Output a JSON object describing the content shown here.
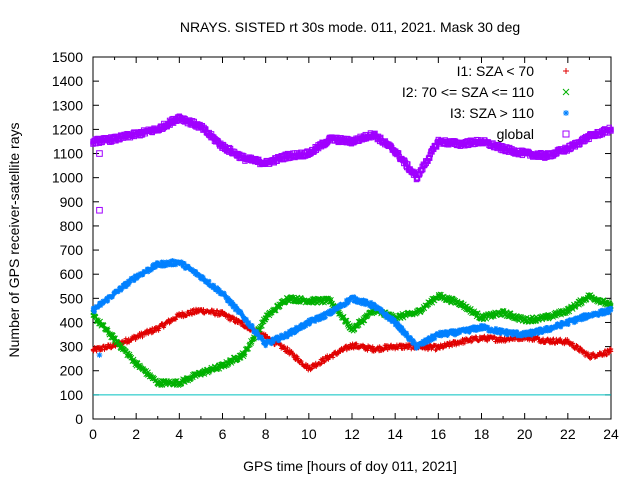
{
  "chart_data": {
    "type": "scatter",
    "title": "NRAYS. SISTED rt 30s mode. 011, 2021. Mask 30 deg",
    "xlabel": "GPS time [hours of doy 011, 2021]",
    "ylabel": "Number of GPS receiver-satellite rays",
    "xlim": [
      0,
      24
    ],
    "ylim": [
      0,
      1500
    ],
    "xticks": [
      "0",
      "2",
      "4",
      "6",
      "8",
      "10",
      "12",
      "14",
      "16",
      "18",
      "20",
      "22",
      "24"
    ],
    "yticks": [
      "0",
      "100",
      "200",
      "300",
      "400",
      "500",
      "600",
      "700",
      "800",
      "900",
      "1000",
      "1100",
      "1200",
      "1300",
      "1400",
      "1500"
    ],
    "reference_line": {
      "y": 100,
      "color": "#00c0c0"
    },
    "series": [
      {
        "name": "I1: SZA < 70",
        "marker": "+",
        "color": "#e00000",
        "x": [
          0,
          1,
          2,
          3,
          4,
          5,
          6,
          7,
          8,
          9,
          10,
          11,
          12,
          13,
          14,
          15,
          16,
          17,
          18,
          19,
          20,
          21,
          22,
          23,
          24
        ],
        "y": [
          285,
          305,
          340,
          375,
          430,
          450,
          435,
          390,
          340,
          285,
          210,
          260,
          305,
          290,
          300,
          300,
          295,
          320,
          335,
          330,
          340,
          325,
          320,
          260,
          280
        ]
      },
      {
        "name": "I2: 70 <= SZA <= 110",
        "marker": "x",
        "color": "#00b000",
        "x": [
          0,
          1,
          2,
          3,
          4,
          5,
          6,
          7,
          8,
          9,
          10,
          11,
          12,
          13,
          14,
          15,
          16,
          17,
          18,
          19,
          20,
          21,
          22,
          23,
          24
        ],
        "y": [
          430,
          330,
          230,
          150,
          150,
          190,
          220,
          270,
          420,
          500,
          490,
          490,
          370,
          450,
          420,
          440,
          510,
          480,
          420,
          440,
          410,
          420,
          450,
          510,
          470
        ]
      },
      {
        "name": "I3: SZA > 110",
        "marker": "*",
        "color": "#0080ff",
        "x": [
          0,
          1,
          2,
          3,
          4,
          5,
          6,
          7,
          8,
          9,
          10,
          11,
          12,
          13,
          14,
          15,
          16,
          17,
          18,
          19,
          20,
          21,
          22,
          23,
          24
        ],
        "y": [
          450,
          520,
          590,
          640,
          650,
          590,
          520,
          420,
          310,
          350,
          400,
          440,
          500,
          470,
          400,
          300,
          350,
          360,
          380,
          360,
          350,
          370,
          400,
          430,
          450
        ]
      },
      {
        "name": "global",
        "marker": "square",
        "color": "#a000ff",
        "x": [
          0,
          1,
          2,
          3,
          4,
          5,
          6,
          7,
          8,
          9,
          10,
          11,
          12,
          13,
          14,
          15,
          16,
          17,
          18,
          19,
          20,
          21,
          22,
          23,
          24
        ],
        "y": [
          1150,
          1160,
          1180,
          1200,
          1250,
          1210,
          1130,
          1080,
          1060,
          1090,
          1100,
          1160,
          1150,
          1180,
          1110,
          1000,
          1150,
          1140,
          1150,
          1120,
          1100,
          1090,
          1120,
          1170,
          1200
        ]
      }
    ],
    "outliers": [
      {
        "series": "I3: SZA > 110",
        "x": 0.3,
        "y": 265
      },
      {
        "series": "global",
        "x": 0.3,
        "y": 865
      },
      {
        "series": "global",
        "x": 0.3,
        "y": 1100
      }
    ],
    "legend_position": "top-right"
  }
}
